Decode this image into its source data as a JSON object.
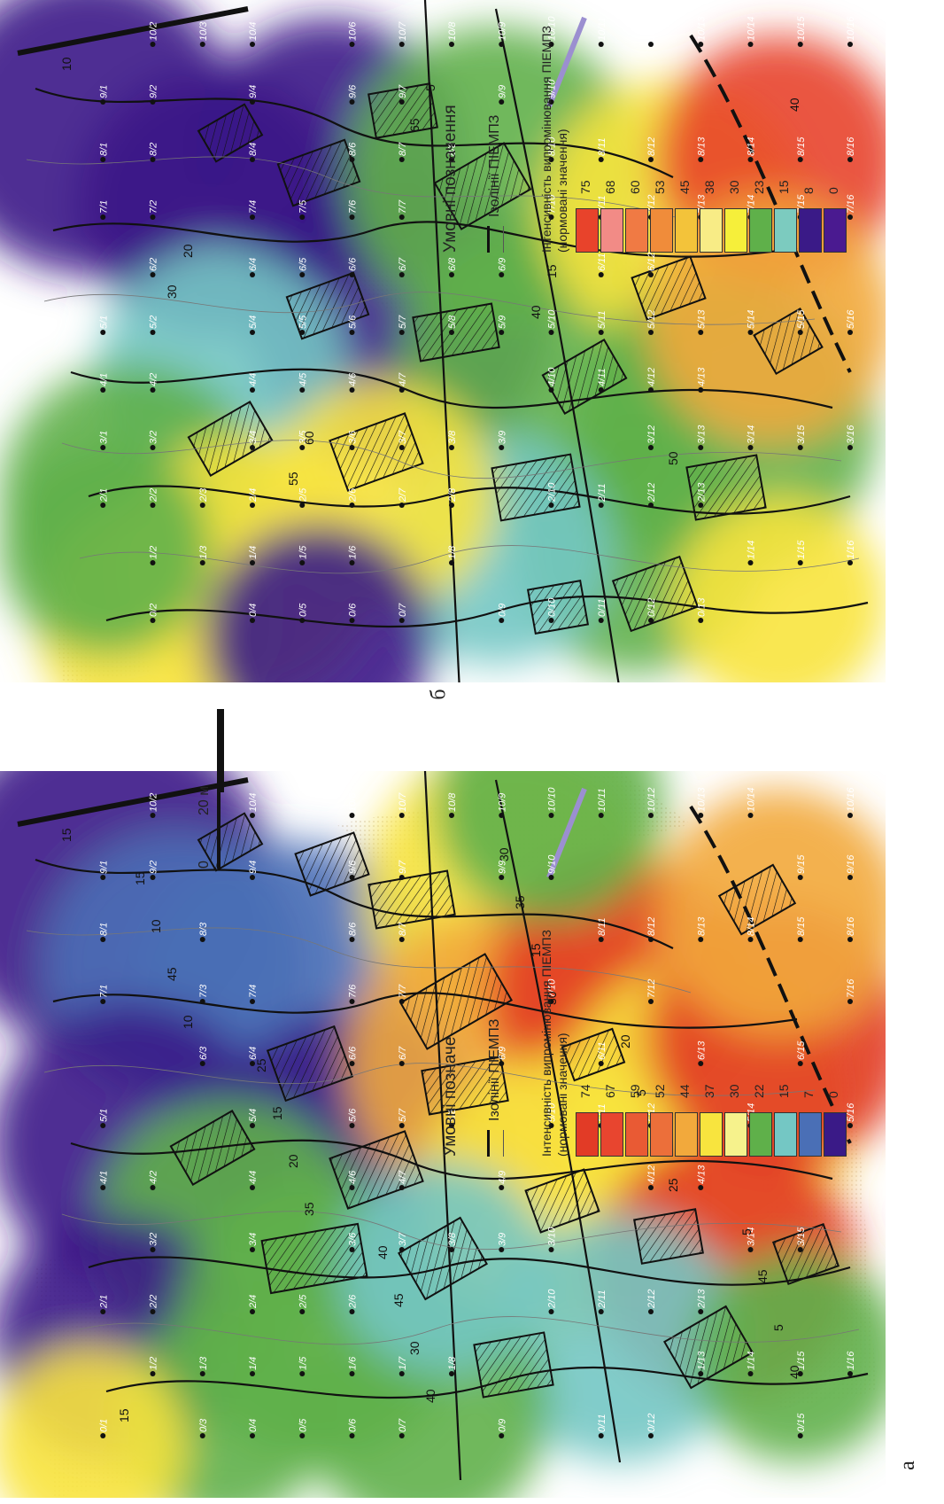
{
  "panels": [
    {
      "letter": "а",
      "legend": {
        "title": "Умовні позначе",
        "isolines_label": "Ізолінії ПІЕМПЗ",
        "intensity_label": "Інтенсивність випромінювання ПІЕМПЗ (нормовані значення)",
        "scale_values": [
          "74",
          "67",
          "59",
          "52",
          "44",
          "37",
          "30",
          "22",
          "15",
          "7",
          "0"
        ],
        "scale_colors": [
          "#e23b26",
          "#e8452f",
          "#e95a34",
          "#ec6f3a",
          "#f2a93c",
          "#f8e43e",
          "#f6f28c",
          "#5fb04a",
          "#74c7c4",
          "#4a6fb6",
          "#3a1a87"
        ]
      },
      "iso_labels": [
        "15",
        "10",
        "35",
        "40",
        "30",
        "25",
        "40",
        "45",
        "20",
        "30",
        "15",
        "5",
        "5",
        "10",
        "15",
        "45",
        "35",
        "5",
        "45",
        "15",
        "25",
        "40",
        "30",
        "20",
        "5",
        "15"
      ],
      "point_labels": [
        "7/1",
        "8/1",
        "9/1",
        "10/2",
        "9/2",
        "8/3",
        "7/3",
        "6/3",
        "5/1",
        "4/1",
        "2/1",
        "0/1",
        "1/2",
        "2/2",
        "3/2",
        "4/2",
        "1/3",
        "0/3",
        "0/4",
        "1/4",
        "2/4",
        "3/4",
        "4/4",
        "5/4",
        "6/4",
        "7/4",
        "9/4",
        "10/4",
        "2/5",
        "1/5",
        "0/5",
        "0/6",
        "1/6",
        "2/6",
        "3/6",
        "4/6",
        "5/6",
        "6/6",
        "7/6",
        "8/6",
        "9/6",
        "10/6",
        "0/7",
        "1/7",
        "3/7",
        "4/7",
        "5/7",
        "6/7",
        "7/7",
        "8/7",
        "9/7",
        "10/7",
        "1/8",
        "3/8",
        "5/8",
        "10/8",
        "0/9",
        "3/9",
        "4/9",
        "6/9",
        "9/9",
        "10/9",
        "2/10",
        "3/10",
        "5/10",
        "7/10",
        "9/10",
        "10/10",
        "0/11",
        "2/11",
        "5/11",
        "6/11",
        "8/11",
        "10/11",
        "0/12",
        "2/12",
        "4/12",
        "5/12",
        "7/12",
        "8/12",
        "10/12",
        "1/13",
        "2/13",
        "4/13",
        "6/13",
        "8/13",
        "10/13",
        "1/14",
        "3/14",
        "5/14",
        "8/14",
        "10/14",
        "0/15",
        "1/15",
        "3/15",
        "6/15",
        "8/15",
        "9/15",
        "1/16",
        "5/16",
        "7/16",
        "8/16",
        "9/16",
        "10/16"
      ]
    },
    {
      "letter": "б",
      "legend": {
        "title": "Умовні позначення",
        "isolines_label": "Ізолінії ПІЕМПЗ",
        "intensity_label": "Інтенсивність випромінювання ПІЕМПЗ (нормовані значення)",
        "scale_values": [
          "75",
          "68",
          "60",
          "53",
          "45",
          "38",
          "30",
          "23",
          "15",
          "8",
          "0"
        ],
        "scale_colors": [
          "#e8432b",
          "#f28b86",
          "#f07a44",
          "#f08c3a",
          "#f3c33a",
          "#f8ec86",
          "#f6ef3a",
          "#5fb04a",
          "#7ccbbf",
          "#3a1a87",
          "#4a1a90"
        ]
      },
      "iso_labels": [
        "10",
        "20",
        "60",
        "5",
        "15",
        "50",
        "40",
        "30",
        "55",
        "65",
        "40"
      ],
      "point_labels": [
        "7/1",
        "8/1",
        "9/1",
        "10/2",
        "9/2",
        "8/2",
        "7/2",
        "6/2",
        "5/1",
        "4/1",
        "3/1",
        "2/1",
        "0/2",
        "1/2",
        "2/2",
        "3/2",
        "4/2",
        "5/2",
        "1/3",
        "2/3",
        "0/4",
        "1/4",
        "2/4",
        "3/4",
        "4/4",
        "5/4",
        "6/4",
        "7/4",
        "8/4",
        "9/4",
        "10/4",
        "10/3",
        "0/5",
        "1/5",
        "2/5",
        "3/5",
        "4/5",
        "5/5",
        "6/5",
        "7/5",
        "0/6",
        "1/6",
        "2/6",
        "3/6",
        "4/6",
        "5/6",
        "6/6",
        "7/6",
        "8/6",
        "9/6",
        "10/6",
        "0/7",
        "2/7",
        "3/7",
        "4/7",
        "5/7",
        "6/7",
        "7/7",
        "8/7",
        "9/7",
        "10/7",
        "1/8",
        "2/8",
        "3/8",
        "5/8",
        "6/8",
        "8/8",
        "10/8",
        "0/9",
        "3/9",
        "5/9",
        "6/9",
        "9/9",
        "10/9",
        "0/10",
        "2/10",
        "4/10",
        "5/10",
        "7/10",
        "8/10",
        "9/10",
        "10/10",
        "0/11",
        "2/11",
        "4/11",
        "5/11",
        "6/11",
        "7/11",
        "8/11",
        "10/11",
        "0/12",
        "2/12",
        "3/12",
        "4/12",
        "5/12",
        "6/12",
        "7/12",
        "8/12",
        "10/12",
        "0/13",
        "2/13",
        "3/13",
        "4/13",
        "5/13",
        "7/13",
        "8/13",
        "10/13",
        "1/14",
        "3/14",
        "5/14",
        "7/14",
        "8/14",
        "10/14",
        "1/15",
        "3/15",
        "5/15",
        "7/15",
        "8/15",
        "10/15",
        "1/16",
        "3/16",
        "5/16",
        "7/16",
        "8/16",
        "10/16"
      ]
    }
  ],
  "scale_bar": {
    "zero": "0",
    "label": "20 м"
  },
  "iconography": [
    "compass-x-icon",
    "hatched-building-icon",
    "dotted-area-icon"
  ]
}
